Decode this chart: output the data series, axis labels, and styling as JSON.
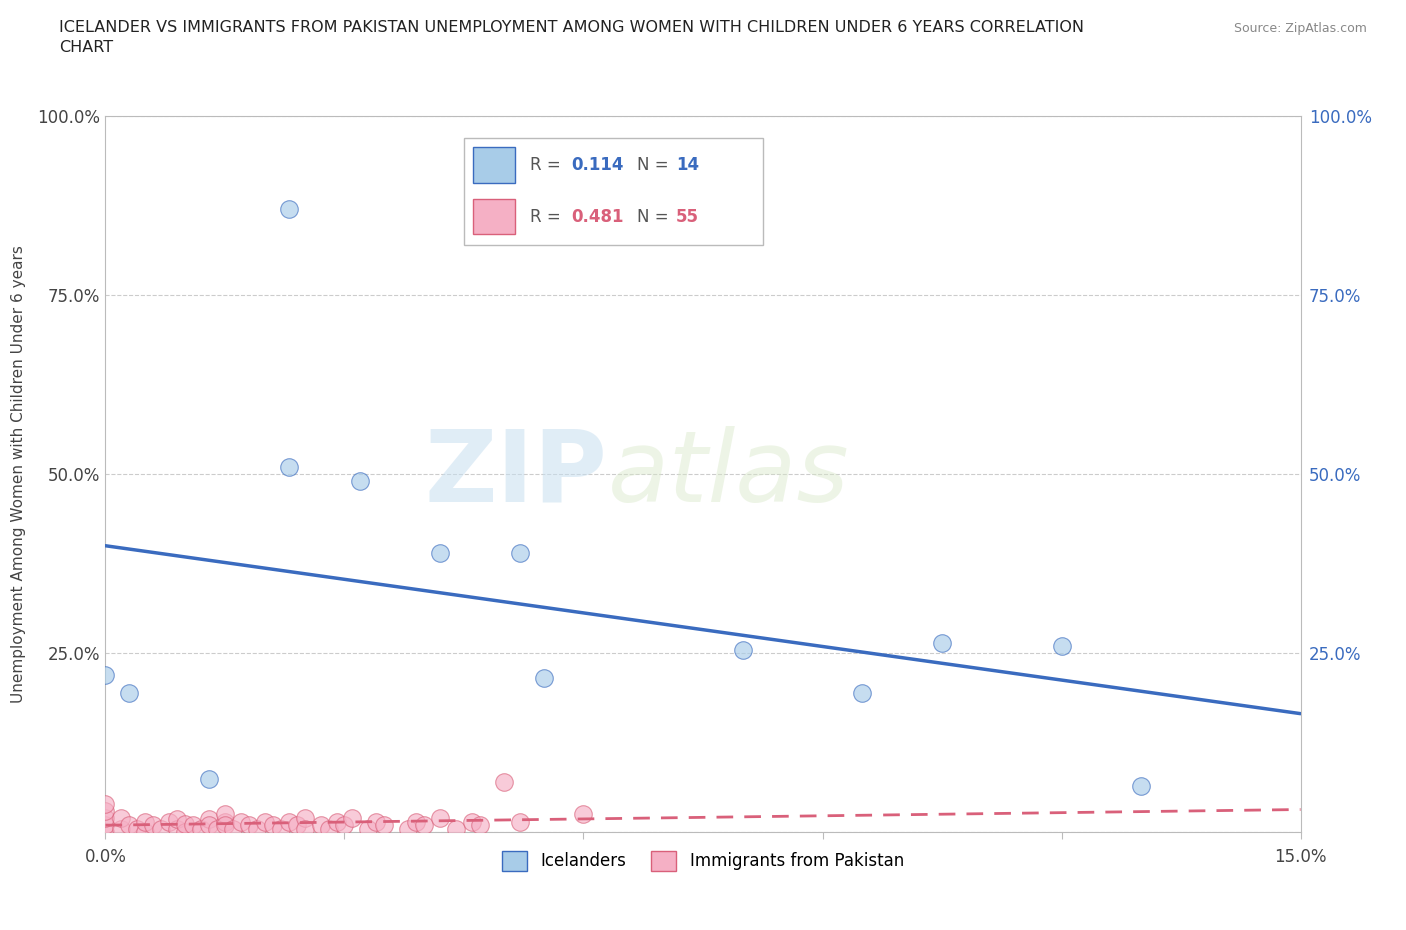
{
  "title_line1": "ICELANDER VS IMMIGRANTS FROM PAKISTAN UNEMPLOYMENT AMONG WOMEN WITH CHILDREN UNDER 6 YEARS CORRELATION",
  "title_line2": "CHART",
  "source": "Source: ZipAtlas.com",
  "ylabel_label": "Unemployment Among Women with Children Under 6 years",
  "legend_label1": "Icelanders",
  "legend_label2": "Immigrants from Pakistan",
  "r1": 0.114,
  "n1": 14,
  "r2": 0.481,
  "n2": 55,
  "color1": "#a8cce8",
  "color2": "#f5b0c5",
  "line_color1": "#3a6bbf",
  "line_color2": "#d9607a",
  "watermark_zip": "ZIP",
  "watermark_atlas": "atlas",
  "icelanders_x": [
    0.0,
    0.003,
    0.013,
    0.023,
    0.023,
    0.032,
    0.042,
    0.052,
    0.055,
    0.08,
    0.095,
    0.105,
    0.12,
    0.13
  ],
  "icelanders_y": [
    0.22,
    0.195,
    0.075,
    0.87,
    0.51,
    0.49,
    0.39,
    0.39,
    0.215,
    0.255,
    0.195,
    0.265,
    0.26,
    0.065
  ],
  "pakistan_x": [
    0.0,
    0.0,
    0.0,
    0.0,
    0.0,
    0.002,
    0.002,
    0.003,
    0.004,
    0.005,
    0.005,
    0.006,
    0.007,
    0.008,
    0.009,
    0.009,
    0.01,
    0.01,
    0.011,
    0.012,
    0.013,
    0.013,
    0.014,
    0.015,
    0.015,
    0.015,
    0.016,
    0.017,
    0.018,
    0.019,
    0.02,
    0.021,
    0.022,
    0.023,
    0.024,
    0.025,
    0.025,
    0.027,
    0.028,
    0.029,
    0.03,
    0.031,
    0.033,
    0.034,
    0.035,
    0.038,
    0.039,
    0.04,
    0.042,
    0.044,
    0.046,
    0.047,
    0.05,
    0.052,
    0.06
  ],
  "pakistan_y": [
    0.0,
    0.01,
    0.02,
    0.03,
    0.04,
    0.005,
    0.02,
    0.01,
    0.005,
    0.0,
    0.015,
    0.01,
    0.005,
    0.015,
    0.005,
    0.018,
    0.0,
    0.012,
    0.01,
    0.005,
    0.018,
    0.01,
    0.005,
    0.015,
    0.025,
    0.01,
    0.005,
    0.015,
    0.01,
    0.005,
    0.015,
    0.01,
    0.005,
    0.015,
    0.01,
    0.02,
    0.005,
    0.01,
    0.005,
    0.015,
    0.01,
    0.02,
    0.005,
    0.015,
    0.01,
    0.005,
    0.015,
    0.01,
    0.02,
    0.005,
    0.015,
    0.01,
    0.07,
    0.015,
    0.025
  ],
  "xlim": [
    0.0,
    0.15
  ],
  "ylim": [
    0.0,
    1.0
  ],
  "yticks": [
    0.0,
    0.25,
    0.5,
    0.75,
    1.0
  ],
  "ytick_labels": [
    "",
    "25.0%",
    "50.0%",
    "75.0%",
    "100.0%"
  ],
  "xticks": [
    0.0,
    0.03,
    0.06,
    0.09,
    0.12,
    0.15
  ],
  "xtick_labels": [
    "0.0%",
    "",
    "",
    "",
    "",
    "15.0%"
  ]
}
